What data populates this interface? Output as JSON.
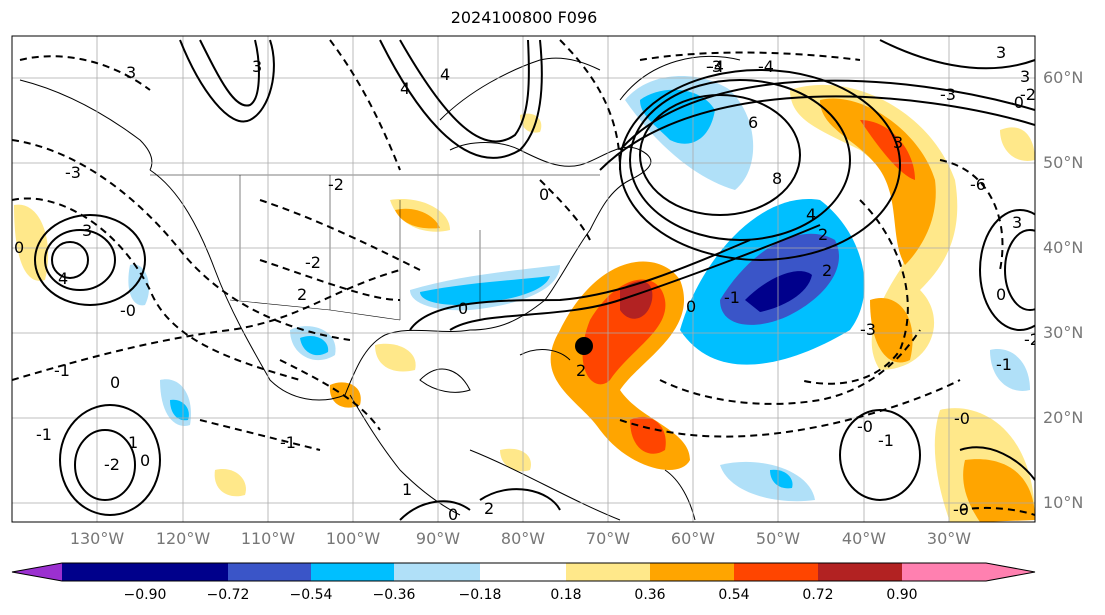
{
  "title": "2024100800 F096",
  "lat_labels": [
    "60°N",
    "50°N",
    "40°N",
    "30°N",
    "20°N",
    "10°N"
  ],
  "lon_labels": [
    "130°W",
    "120°W",
    "110°W",
    "100°W",
    "90°W",
    "80°W",
    "70°W",
    "60°W",
    "50°W",
    "40°W",
    "30°W"
  ],
  "contour_labels": [
    "3",
    "4",
    "4",
    "3",
    "2",
    "0",
    "-3",
    "-4",
    "-4",
    "3",
    "3",
    "-3",
    "4",
    "3",
    "0",
    "-2",
    "-0",
    "0",
    "6",
    "8",
    "4",
    "2",
    "2",
    "-1",
    "-3",
    "-6",
    "3",
    "-2",
    "0",
    "-0",
    "-2",
    "0",
    "-1",
    "2",
    "-1",
    "0",
    "-1",
    "-1",
    "-2",
    "0",
    "1",
    "-0",
    "-1",
    "-0",
    "2",
    "1",
    "0",
    "-0",
    "3",
    "-3",
    "-2"
  ],
  "colorbar": {
    "ticks": [
      "−0.90",
      "−0.72",
      "−0.54",
      "−0.36",
      "−0.18",
      "0.18",
      "0.36",
      "0.54",
      "0.72",
      "0.90"
    ],
    "colors": {
      "under": "#9b30d0",
      "c1": "#00008b",
      "c2": "#3a55c8",
      "c3": "#00bfff",
      "c4": "#b0e0f8",
      "c5": "#ffffff",
      "c6": "#ffe88a",
      "c7": "#ffa500",
      "c8": "#ff4500",
      "c9": "#b22222",
      "over": "#ff80b0"
    }
  },
  "marker": "storm-center"
}
